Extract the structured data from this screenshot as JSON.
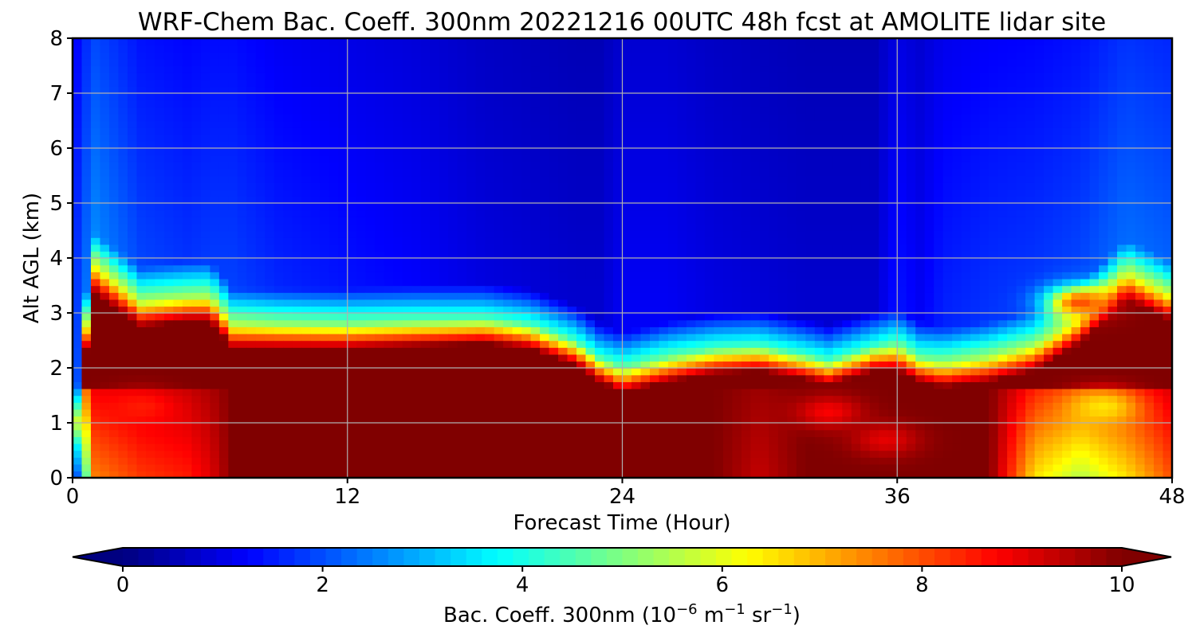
{
  "chart_data": {
    "type": "heatmap",
    "subtype": "filled-contour time-height cross-section",
    "title": "WRF-Chem Bac. Coeff. 300nm  20221216 00UTC 48h fcst at AMOLITE lidar site",
    "xlabel": "Forecast Time (Hour)",
    "ylabel": "Alt AGL (km)",
    "xlim": [
      0,
      48
    ],
    "ylim": [
      0,
      8
    ],
    "xticks": [
      0,
      12,
      24,
      36,
      48
    ],
    "yticks": [
      0,
      1,
      2,
      3,
      4,
      5,
      6,
      7,
      8
    ],
    "grid": true,
    "colormap": "jet",
    "colorbar": {
      "label": "Bac. Coeff. 300nm  (10^-6 m^-1 sr^-1)",
      "label_main": "Bac. Coeff. 300nm  (10",
      "label_exp1": "−6",
      "label_unit1": " m",
      "label_exp2": "−1",
      "label_unit2": " sr",
      "label_exp3": "−1",
      "label_close": ")",
      "vmin": 0,
      "vmax": 10,
      "ticks": [
        0,
        2,
        4,
        6,
        8,
        10
      ],
      "extend": "both",
      "orientation": "horizontal"
    },
    "x": [
      0,
      0.5,
      1,
      3,
      5,
      6,
      7,
      9,
      12,
      15,
      18,
      20,
      22,
      23,
      24,
      26,
      28,
      30,
      32,
      33,
      35,
      36,
      37,
      38,
      40,
      42,
      44,
      46,
      48
    ],
    "y": [
      0,
      0.25,
      0.5,
      0.75,
      1,
      1.25,
      1.5,
      1.75,
      2,
      2.25,
      2.5,
      2.75,
      3,
      3.25,
      3.5,
      3.75,
      4,
      4.25,
      4.5,
      4.75,
      5,
      5.25,
      5.5,
      5.75,
      6,
      6.5,
      7,
      7.5,
      8
    ],
    "boundary_layer_top_km": [
      0,
      2.4,
      3.7,
      3.1,
      3.2,
      3.2,
      2.7,
      2.7,
      2.7,
      2.75,
      2.8,
      2.7,
      2.4,
      2.1,
      1.9,
      2.1,
      2.25,
      2.3,
      2.15,
      2.05,
      2.3,
      2.3,
      2.1,
      2.0,
      2.1,
      2.3,
      2.8,
      3.6,
      3.2
    ],
    "aloft_values": [
      1.6,
      2.4,
      2.9,
      2.1,
      1.9,
      2.0,
      2.0,
      1.7,
      1.5,
      1.3,
      1.0,
      0.9,
      0.8,
      0.8,
      1.2,
      1.2,
      1.0,
      0.9,
      0.8,
      0.8,
      0.8,
      1.5,
      1.2,
      1.6,
      1.8,
      1.9,
      2.1,
      2.6,
      2.4
    ],
    "lower_values_km_0_1": [
      0.8,
      4.0,
      7.5,
      8.2,
      8.5,
      9.0,
      10,
      10,
      10,
      10,
      10,
      10,
      10,
      10,
      10,
      10,
      10,
      9.3,
      10,
      10,
      10,
      10,
      10,
      10,
      10,
      6.5,
      5.5,
      6.5,
      8.0
    ],
    "notable_features": [
      {
        "label": "orange pocket",
        "x": 3,
        "y": 1.3,
        "value": 8.5
      },
      {
        "label": "red patch",
        "x": 33,
        "y": 1.2,
        "value": 8.8
      },
      {
        "label": "red patch",
        "x": 35.5,
        "y": 0.7,
        "value": 9.0
      },
      {
        "label": "orange layer",
        "x": 44,
        "y": 3.2,
        "value": 8.0
      },
      {
        "label": "yellow layer",
        "x": 45,
        "y": 1.3,
        "value": 6.5
      }
    ]
  }
}
